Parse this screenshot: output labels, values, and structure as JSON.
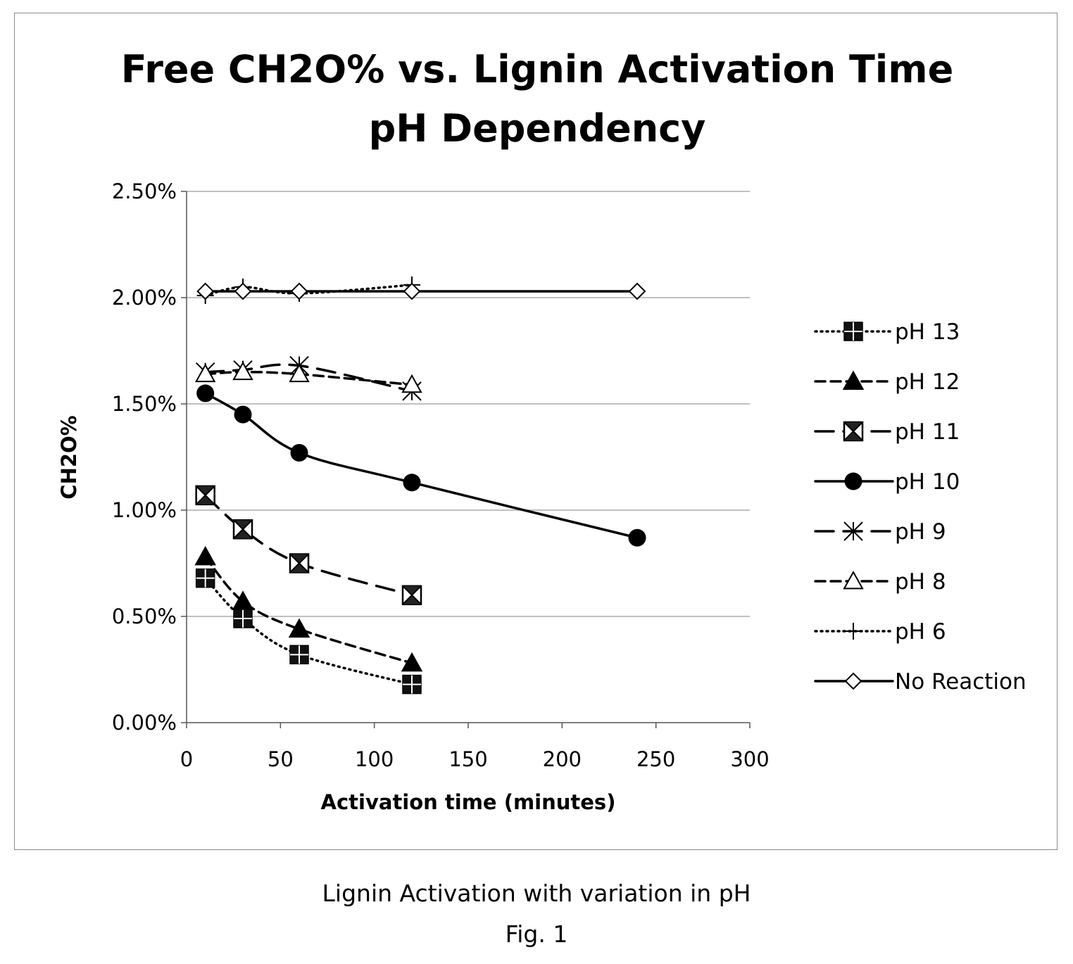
{
  "chart_data": {
    "type": "line",
    "title": "Free CH2O% vs. Lignin Activation Time",
    "subtitle": "pH Dependency",
    "xlabel": "Activation time (minutes)",
    "ylabel": "CH2O%",
    "xlim": [
      0,
      300
    ],
    "ylim": [
      0,
      0.025
    ],
    "x_ticks": [
      0,
      50,
      100,
      150,
      200,
      250,
      300
    ],
    "x_tick_labels": [
      "0",
      "50",
      "100",
      "150",
      "200",
      "250",
      "300"
    ],
    "y_ticks": [
      0,
      0.005,
      0.01,
      0.015,
      0.02,
      0.025
    ],
    "y_tick_labels": [
      "0.00%",
      "0.50%",
      "1.00%",
      "1.50%",
      "2.00%",
      "2.50%"
    ],
    "grid": "horizontal",
    "legend_position": "right",
    "series": [
      {
        "name": "pH 13",
        "marker": "square-plus",
        "line": "dotted",
        "x": [
          10,
          30,
          60,
          120
        ],
        "y": [
          0.0068,
          0.0049,
          0.0032,
          0.0018
        ]
      },
      {
        "name": "pH 12",
        "marker": "triangle-filled",
        "line": "dashed",
        "x": [
          10,
          30,
          60,
          120
        ],
        "y": [
          0.0078,
          0.0057,
          0.0044,
          0.0028
        ]
      },
      {
        "name": "pH 11",
        "marker": "square-x",
        "line": "long-dashed",
        "x": [
          10,
          30,
          60,
          120
        ],
        "y": [
          0.0107,
          0.0091,
          0.0075,
          0.006
        ]
      },
      {
        "name": "pH 10",
        "marker": "circle-filled",
        "line": "solid",
        "x": [
          10,
          30,
          60,
          120,
          240
        ],
        "y": [
          0.0155,
          0.0145,
          0.0127,
          0.0113,
          0.0087
        ]
      },
      {
        "name": "pH 9",
        "marker": "asterisk",
        "line": "long-dashed",
        "x": [
          10,
          30,
          60,
          120
        ],
        "y": [
          0.0165,
          0.0166,
          0.0168,
          0.0156
        ]
      },
      {
        "name": "pH 8",
        "marker": "triangle-open",
        "line": "dashed",
        "x": [
          10,
          30,
          60,
          120
        ],
        "y": [
          0.0164,
          0.0165,
          0.0164,
          0.0159
        ]
      },
      {
        "name": "pH 6",
        "marker": "plus",
        "line": "dotted",
        "x": [
          10,
          30,
          60,
          120
        ],
        "y": [
          0.0201,
          0.0205,
          0.0202,
          0.0206
        ]
      },
      {
        "name": "No Reaction",
        "marker": "diamond-open",
        "line": "solid",
        "x": [
          10,
          30,
          60,
          120,
          240
        ],
        "y": [
          0.0203,
          0.0203,
          0.0203,
          0.0203,
          0.0203
        ]
      }
    ]
  },
  "caption": {
    "line1": "Lignin Activation with variation in pH",
    "line2": "Fig. 1"
  }
}
